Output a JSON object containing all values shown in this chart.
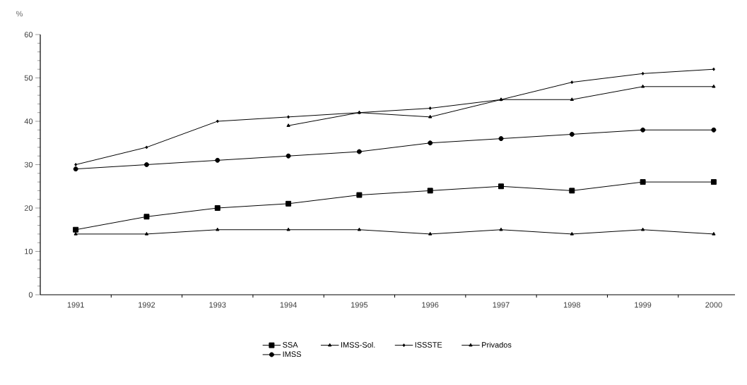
{
  "chart_data": {
    "type": "line",
    "ylabel": "%",
    "categories": [
      "1991",
      "1992",
      "1993",
      "1994",
      "1995",
      "1996",
      "1997",
      "1998",
      "1999",
      "2000"
    ],
    "ylim": [
      0,
      60
    ],
    "yticks": [
      0,
      10,
      20,
      30,
      40,
      50,
      60
    ],
    "legend": "bottom",
    "series": [
      {
        "name": "SSA",
        "color": "#000000",
        "marker": "square",
        "values": [
          15,
          18,
          20,
          21,
          23,
          24,
          25,
          24,
          26,
          26
        ]
      },
      {
        "name": "IMSS-Sol.",
        "color": "#000000",
        "marker": "triangle",
        "values": [
          14,
          14,
          15,
          15,
          15,
          14,
          15,
          14,
          15,
          14
        ]
      },
      {
        "name": "ISSSTE",
        "color": "#000000",
        "marker": "diamond",
        "values": [
          30,
          34,
          40,
          41,
          42,
          43,
          45,
          49,
          51,
          52
        ]
      },
      {
        "name": "Privados",
        "color": "#000000",
        "marker": "triangle",
        "values": [
          null,
          null,
          null,
          39,
          42,
          41,
          45,
          45,
          48,
          48
        ]
      },
      {
        "name": "IMSS",
        "color": "#000000",
        "marker": "circle",
        "values": [
          29,
          30,
          31,
          32,
          33,
          35,
          36,
          37,
          38,
          38
        ]
      }
    ]
  }
}
